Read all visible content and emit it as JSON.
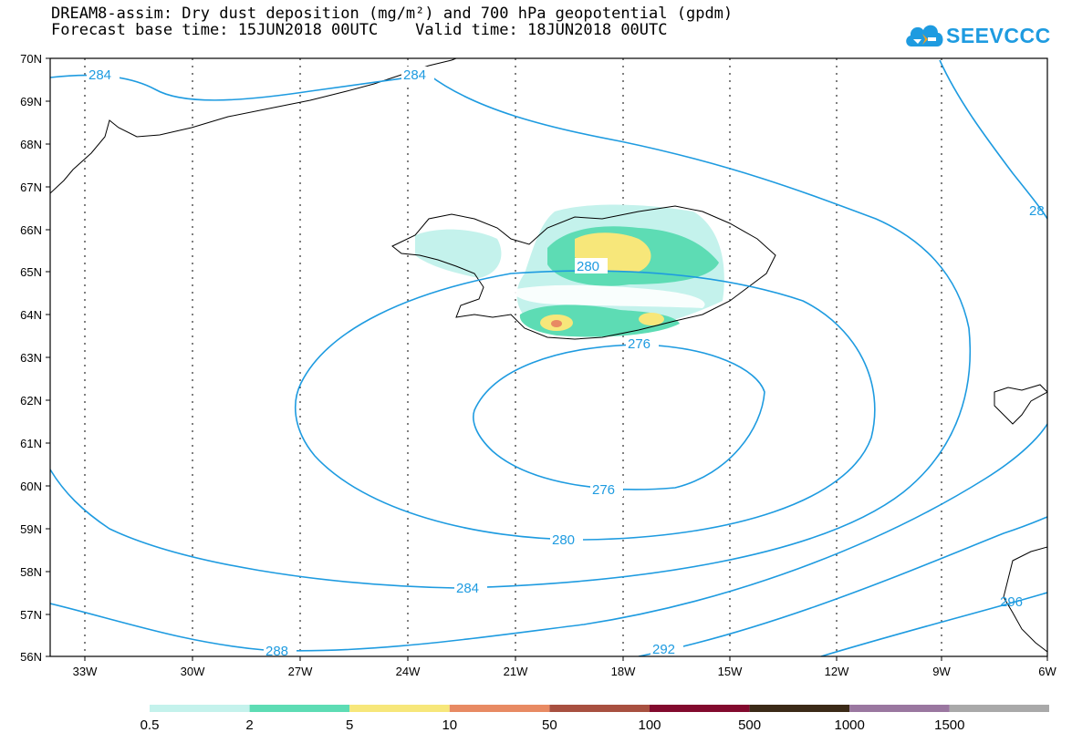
{
  "title": {
    "line1": "DREAM8-assim: Dry dust deposition (mg/m²) and 700 hPa geopotential (gpdm)",
    "line2": "Forecast base time: 15JUN2018 00UTC    Valid time: 18JUN2018 00UTC"
  },
  "logo": {
    "text": "SEEVCCC",
    "icon": "cloud-logo-icon",
    "color": "#1e9be0"
  },
  "map": {
    "lat_labels": [
      "70N",
      "69N",
      "68N",
      "67N",
      "66N",
      "65N",
      "64N",
      "63N",
      "62N",
      "61N",
      "60N",
      "59N",
      "58N",
      "57N",
      "56N"
    ],
    "lon_labels": [
      "33W",
      "30W",
      "27W",
      "24W",
      "21W",
      "18W",
      "15W",
      "12W",
      "9W",
      "6W"
    ],
    "contour_color": "#1e9be0",
    "contour_labels": [
      "284",
      "284",
      "28",
      "280",
      "276",
      "276",
      "280",
      "284",
      "288",
      "292",
      "296"
    ]
  },
  "colorbar": {
    "labels": [
      "0.5",
      "2",
      "5",
      "10",
      "50",
      "100",
      "500",
      "1000",
      "1500"
    ],
    "colors": [
      "#c4f2ec",
      "#5ddcb4",
      "#f7e77a",
      "#e88a63",
      "#a85040",
      "#820a2e",
      "#3b2a17",
      "#9a77a0",
      "#a9a9a9"
    ]
  }
}
